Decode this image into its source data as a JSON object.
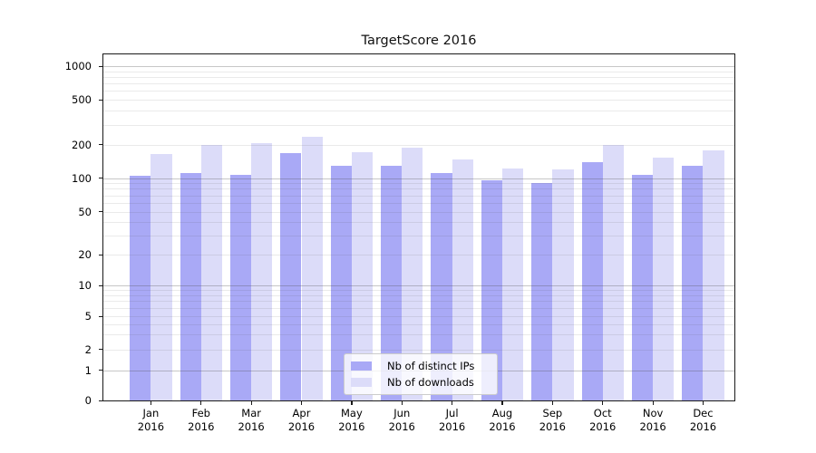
{
  "title": "TargetScore 2016",
  "legend": {
    "items": [
      {
        "label": "Nb of distinct IPs",
        "color": "#a9a9f6"
      },
      {
        "label": "Nb of downloads",
        "color": "#dcdcf9"
      }
    ]
  },
  "chart_data": {
    "type": "bar",
    "title": "TargetScore 2016",
    "categories": [
      "Jan",
      "Feb",
      "Mar",
      "Apr",
      "May",
      "Jun",
      "Jul",
      "Aug",
      "Sep",
      "Oct",
      "Nov",
      "Dec"
    ],
    "category_year": "2016",
    "series": [
      {
        "name": "Nb of distinct IPs",
        "color": "#a9a9f6",
        "values": [
          105,
          110,
          107,
          168,
          130,
          129,
          110,
          96,
          90,
          138,
          107,
          130
        ]
      },
      {
        "name": "Nb of downloads",
        "color": "#dcdcf9",
        "values": [
          163,
          197,
          207,
          233,
          171,
          189,
          148,
          122,
          119,
          200,
          153,
          177
        ]
      }
    ],
    "xlabel": "",
    "ylabel": "",
    "yscale": "symlog",
    "ytick_labels": [
      "0",
      "1",
      "2",
      "5",
      "10",
      "20",
      "50",
      "100",
      "200",
      "500",
      "1000"
    ],
    "ytick_values": [
      0,
      1,
      2,
      5,
      10,
      20,
      50,
      100,
      200,
      500,
      1000
    ],
    "ylim": [
      0,
      1200
    ],
    "grid": "both",
    "legend_position": "lower center"
  }
}
